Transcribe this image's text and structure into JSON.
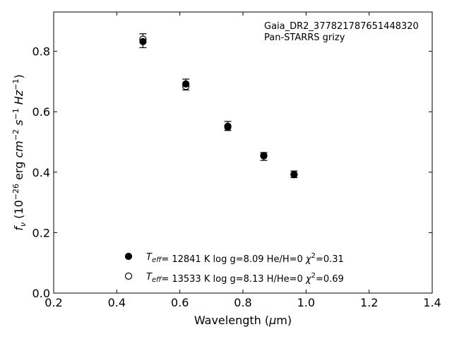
{
  "chart_data": {
    "type": "scatter",
    "xlabel": "Wavelength (μm)",
    "ylabel": "f_ν (10^-26 erg cm^-2 s^-1 Hz^-1)",
    "xlim": [
      0.2,
      1.4
    ],
    "ylim": [
      0.0,
      0.93
    ],
    "xticks": [
      "0.2",
      "0.4",
      "0.6",
      "0.8",
      "1.0",
      "1.2",
      "1.4"
    ],
    "yticks": [
      "0.0",
      "0.2",
      "0.4",
      "0.6",
      "0.8"
    ],
    "grid": false,
    "annotation": [
      "Gaia_DR2_377821787651448320",
      "Pan-STARRS grizy"
    ],
    "observed": {
      "x": [
        0.483,
        0.619,
        0.752,
        0.866,
        0.962
      ],
      "y": [
        0.835,
        0.69,
        0.553,
        0.452,
        0.393
      ],
      "yerr": [
        0.023,
        0.018,
        0.015,
        0.013,
        0.011
      ]
    },
    "series": [
      {
        "name": "T_eff= 12841 K  log g=8.09  He/H=0  χ²=0.31",
        "marker": "filled-circle",
        "x": [
          0.483,
          0.619,
          0.752,
          0.866,
          0.962
        ],
        "y": [
          0.832,
          0.692,
          0.549,
          0.455,
          0.392
        ]
      },
      {
        "name": "T_eff= 13533 K  log g=8.13  H/He=0  χ²=0.69",
        "marker": "open-circle",
        "x": [
          0.483,
          0.619,
          0.752,
          0.866,
          0.962
        ],
        "y": [
          0.84,
          0.684,
          0.552,
          0.454,
          0.393
        ]
      }
    ],
    "legend_placement": "lower-center"
  }
}
